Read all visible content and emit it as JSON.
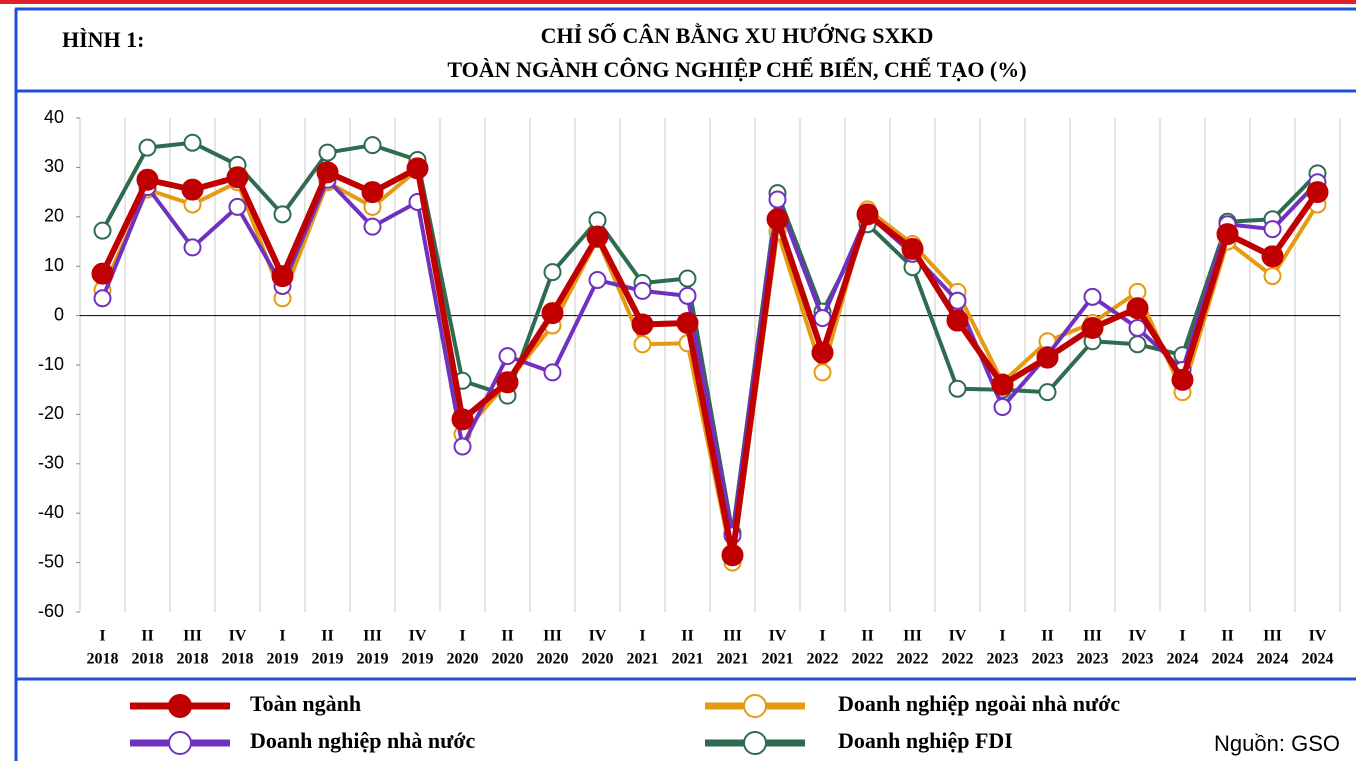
{
  "chart_data": {
    "type": "line",
    "figure_label": "HÌNH 1:",
    "title": "CHỈ SỐ CÂN BẰNG XU HƯỚNG SXKD",
    "subtitle": "TOÀN NGÀNH CÔNG NGHIỆP CHẾ BIẾN, CHẾ TẠO (%)",
    "source": "Nguồn: GSO",
    "categories": [
      [
        "I",
        "2018"
      ],
      [
        "II",
        "2018"
      ],
      [
        "III",
        "2018"
      ],
      [
        "IV",
        "2018"
      ],
      [
        "I",
        "2019"
      ],
      [
        "II",
        "2019"
      ],
      [
        "III",
        "2019"
      ],
      [
        "IV",
        "2019"
      ],
      [
        "I",
        "2020"
      ],
      [
        "II",
        "2020"
      ],
      [
        "III",
        "2020"
      ],
      [
        "IV",
        "2020"
      ],
      [
        "I",
        "2021"
      ],
      [
        "II",
        "2021"
      ],
      [
        "III",
        "2021"
      ],
      [
        "IV",
        "2021"
      ],
      [
        "I",
        "2022"
      ],
      [
        "II",
        "2022"
      ],
      [
        "III",
        "2022"
      ],
      [
        "IV",
        "2022"
      ],
      [
        "I",
        "2023"
      ],
      [
        "II",
        "2023"
      ],
      [
        "III",
        "2023"
      ],
      [
        "IV",
        "2023"
      ],
      [
        "I",
        "2024"
      ],
      [
        "II",
        "2024"
      ],
      [
        "III",
        "2024"
      ],
      [
        "IV",
        "2024"
      ]
    ],
    "series": [
      {
        "name": "Toàn ngành",
        "color": "#c00000",
        "filled": true,
        "values": [
          8.5,
          27.5,
          25.5,
          28,
          8,
          29,
          25,
          29.8,
          -21,
          -13.5,
          0.5,
          16,
          -1.8,
          -1.5,
          -48.5,
          19.5,
          -7.5,
          20.5,
          13.5,
          -1,
          -14,
          -8.5,
          -2.5,
          1.5,
          -13,
          16.5,
          12,
          25
        ]
      },
      {
        "name": "Doanh nghiệp nhà nước",
        "color": "#7030c0",
        "filled": false,
        "values": [
          3.5,
          26,
          13.8,
          22,
          6,
          27.5,
          18,
          23,
          -26.5,
          -8.2,
          -11.5,
          7.2,
          5,
          4,
          -44.5,
          23.5,
          -0.5,
          20.5,
          12.5,
          3,
          -18.5,
          -8,
          3.8,
          -2.5,
          -11,
          18.5,
          17.5,
          27
        ]
      },
      {
        "name": "Doanh nghiệp ngoài nhà nước",
        "color": "#e69a10",
        "filled": false,
        "values": [
          5.2,
          25.5,
          22.5,
          27,
          3.5,
          27,
          22,
          29.5,
          -24,
          -13.5,
          -2,
          15.5,
          -5.8,
          -5.6,
          -50,
          17,
          -11.5,
          21.5,
          14.5,
          4.8,
          -13.5,
          -5.2,
          -1.5,
          4.8,
          -15.5,
          15,
          8,
          22.5
        ]
      },
      {
        "name": "Doanh nghiệp FDI",
        "color": "#2e6b50",
        "filled": false,
        "values": [
          17.2,
          34,
          35,
          30.5,
          20.5,
          33,
          34.5,
          31.5,
          -13.2,
          -16.2,
          8.8,
          19.3,
          6.6,
          7.5,
          -44,
          24.8,
          0.8,
          18.5,
          9.8,
          -14.8,
          -15,
          -15.5,
          -5.2,
          -5.8,
          -8,
          19,
          19.5,
          28.8
        ]
      }
    ],
    "ylim": [
      -60,
      40
    ],
    "yticks": [
      -60,
      -50,
      -40,
      -30,
      -20,
      -10,
      0,
      10,
      20,
      30,
      40
    ],
    "grid": true
  }
}
